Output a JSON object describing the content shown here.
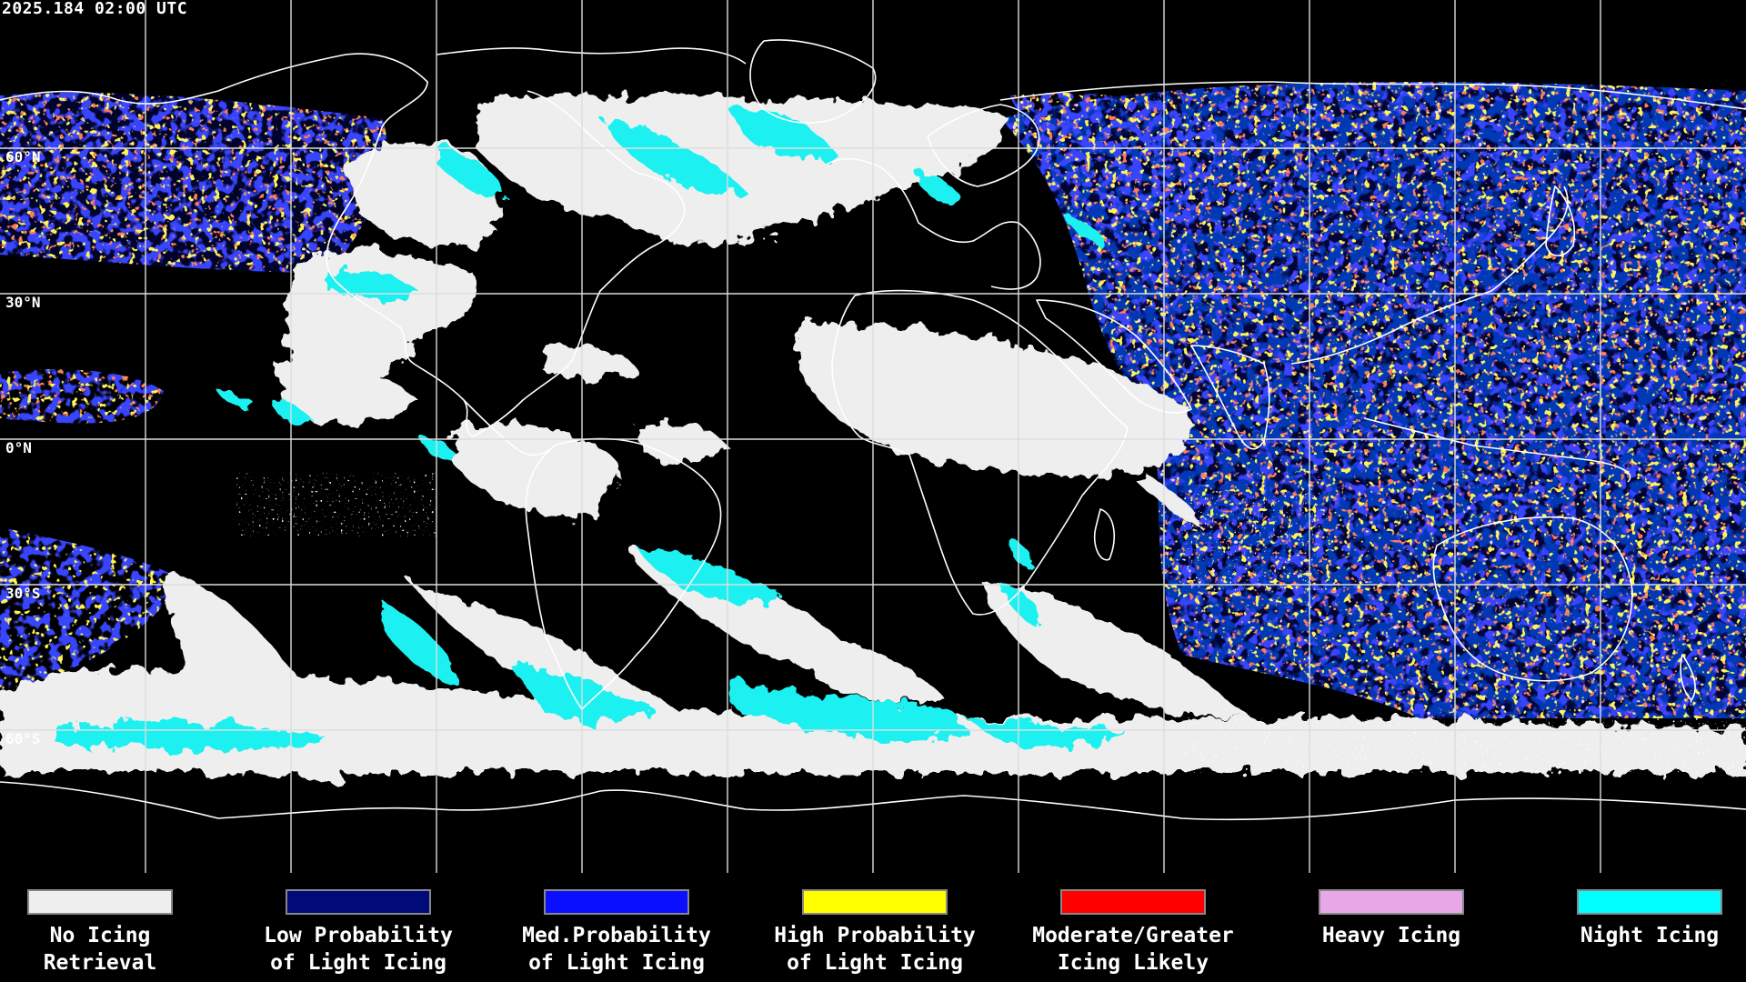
{
  "header": {
    "timestamp": "2025.184 02:00 UTC"
  },
  "lat_labels": [
    "60°N",
    "30°N",
    "0°N",
    "30°S",
    "60°S"
  ],
  "legend": [
    {
      "label": "No Icing\nRetrieval",
      "color": "#eeeeee"
    },
    {
      "label": "Low Probability\nof Light Icing",
      "color": "#000a78"
    },
    {
      "label": "Med.Probability\nof Light Icing",
      "color": "#0a10ff"
    },
    {
      "label": "High Probability\nof Light Icing",
      "color": "#ffff00"
    },
    {
      "label": "Moderate/Greater\nIcing Likely",
      "color": "#ff0000"
    },
    {
      "label": "Heavy Icing",
      "color": "#e8a8e8"
    },
    {
      "label": "Night Icing",
      "color": "#00ffff"
    }
  ],
  "colors": {
    "background": "#000000",
    "grid": "#dddddd",
    "coastline": "#ffffff",
    "no_icing": "#eeeeee",
    "night_icing": "#1ef0f0",
    "low_prob": "#000a78",
    "med_prob": "#0a10ff",
    "high_prob": "#ffff00",
    "moderate": "#ff3c1e",
    "heavy": "#e8a8e8"
  }
}
